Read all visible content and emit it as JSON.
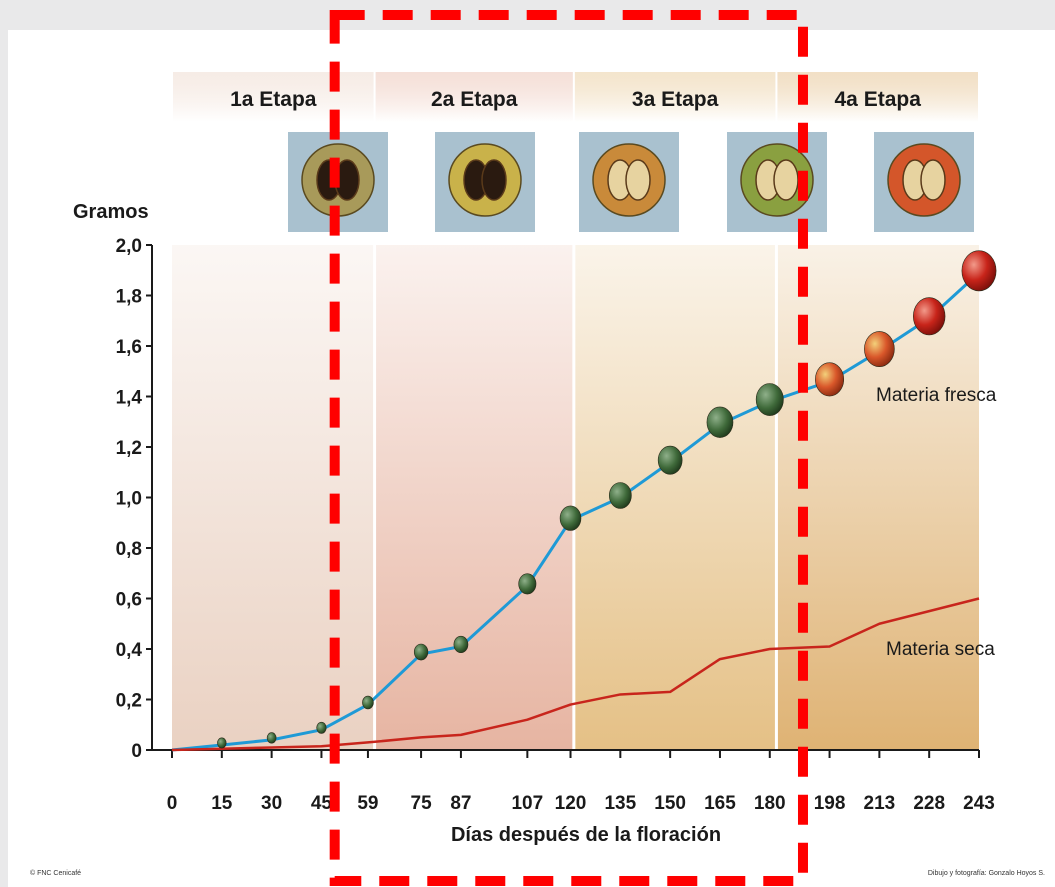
{
  "chart_data": {
    "type": "line",
    "ylabel": "Gramos",
    "xlabel": "Días después de la floración",
    "x": [
      0,
      15,
      30,
      45,
      59,
      75,
      87,
      107,
      120,
      135,
      150,
      165,
      180,
      198,
      213,
      228,
      243
    ],
    "x_tick_labels": [
      "0",
      "15",
      "30",
      "45",
      "59",
      "75",
      "87",
      "107",
      "120",
      "135",
      "150",
      "165",
      "180",
      "198",
      "213",
      "228",
      "243"
    ],
    "y_ticks": [
      0,
      0.2,
      0.4,
      0.6,
      0.8,
      1.0,
      1.2,
      1.4,
      1.6,
      1.8,
      2.0
    ],
    "y_tick_labels": [
      "0",
      "0,2",
      "0,4",
      "0,6",
      "0,8",
      "1,0",
      "1,2",
      "1,4",
      "1,6",
      "1,8",
      "2,0"
    ],
    "ylim": [
      0,
      2.0
    ],
    "grid": false,
    "series": [
      {
        "name": "Materia fresca",
        "color": "#1f9ad6",
        "values": [
          0.0,
          0.02,
          0.04,
          0.08,
          0.18,
          0.38,
          0.41,
          0.65,
          0.91,
          1.0,
          1.14,
          1.29,
          1.38,
          1.46,
          1.58,
          1.71,
          1.89
        ]
      },
      {
        "name": "Materia seca",
        "color": "#c8251c",
        "values": [
          0.0,
          0.005,
          0.01,
          0.015,
          0.03,
          0.05,
          0.06,
          0.12,
          0.18,
          0.22,
          0.23,
          0.36,
          0.4,
          0.41,
          0.5,
          0.55,
          0.6
        ]
      }
    ],
    "stages": [
      {
        "label": "1a Etapa",
        "x_start": 0,
        "x_end": 61,
        "color": "#e6c9b7"
      },
      {
        "label": "2a Etapa",
        "x_start": 61,
        "x_end": 121,
        "color": "#e2a791"
      },
      {
        "label": "3a Etapa",
        "x_start": 121,
        "x_end": 182,
        "color": "#e0b570"
      },
      {
        "label": "4a Etapa",
        "x_start": 182,
        "x_end": 243,
        "color": "#d9a55b"
      }
    ],
    "annotations": {
      "highlight_box": {
        "x_from": 52,
        "x_to": 190,
        "color": "#ff0000"
      }
    },
    "credits": {
      "left": "© FNC Cenicafé",
      "right": "Dibujo y fotografía: Gonzalo Hoyos S."
    }
  }
}
